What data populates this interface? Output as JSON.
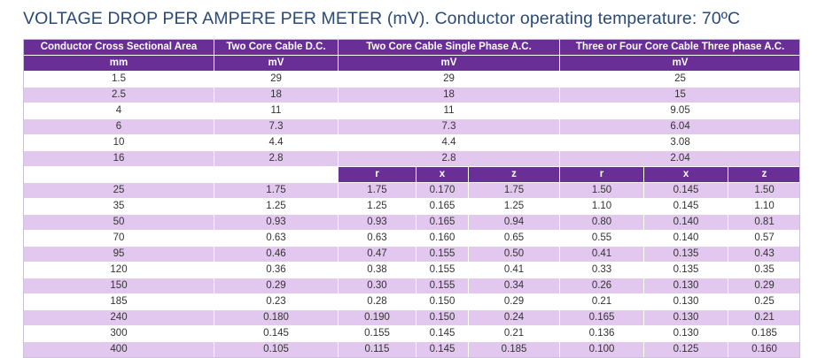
{
  "title": "VOLTAGE DROP PER AMPERE PER METER (mV). Conductor operating temperature: 70ºC",
  "header": {
    "col1": "Conductor Cross Sectional Area",
    "col2": "Two Core Cable D.C.",
    "col3": "Two Core Cable Single Phase A.C.",
    "col4": "Three or Four Core Cable Three phase A.C.",
    "unit1": "mm",
    "unit2": "mV",
    "unit3": "mV",
    "unit4": "mV"
  },
  "simple_rows": [
    [
      "1.5",
      "29",
      "29",
      "25"
    ],
    [
      "2.5",
      "18",
      "18",
      "15"
    ],
    [
      "4",
      "11",
      "11",
      "9.05"
    ],
    [
      "6",
      "7.3",
      "7.3",
      "6.04"
    ],
    [
      "10",
      "4.4",
      "4.4",
      "3.08"
    ],
    [
      "16",
      "2.8",
      "2.8",
      "2.04"
    ]
  ],
  "sub_headers": [
    "r",
    "x",
    "z",
    "r",
    "x",
    "z"
  ],
  "detail_rows": [
    [
      "25",
      "1.75",
      "1.75",
      "0.170",
      "1.75",
      "1.50",
      "0.145",
      "1.50"
    ],
    [
      "35",
      "1.25",
      "1.25",
      "0.165",
      "1.25",
      "1.10",
      "0.145",
      "1.10"
    ],
    [
      "50",
      "0.93",
      "0.93",
      "0.165",
      "0.94",
      "0.80",
      "0.140",
      "0.81"
    ],
    [
      "70",
      "0.63",
      "0.63",
      "0.160",
      "0.65",
      "0.55",
      "0.140",
      "0.57"
    ],
    [
      "95",
      "0.46",
      "0.47",
      "0.155",
      "0.50",
      "0.41",
      "0.135",
      "0.43"
    ],
    [
      "120",
      "0.36",
      "0.38",
      "0.155",
      "0.41",
      "0.33",
      "0.135",
      "0.35"
    ],
    [
      "150",
      "0.29",
      "0.30",
      "0.155",
      "0.34",
      "0.26",
      "0.130",
      "0.29"
    ],
    [
      "185",
      "0.23",
      "0.28",
      "0.150",
      "0.29",
      "0.21",
      "0.130",
      "0.25"
    ],
    [
      "240",
      "0.180",
      "0.190",
      "0.150",
      "0.24",
      "0.165",
      "0.130",
      "0.21"
    ],
    [
      "300",
      "0.145",
      "0.155",
      "0.145",
      "0.21",
      "0.136",
      "0.130",
      "0.185"
    ],
    [
      "400",
      "0.105",
      "0.115",
      "0.145",
      "0.185",
      "0.100",
      "0.125",
      "0.160"
    ]
  ]
}
